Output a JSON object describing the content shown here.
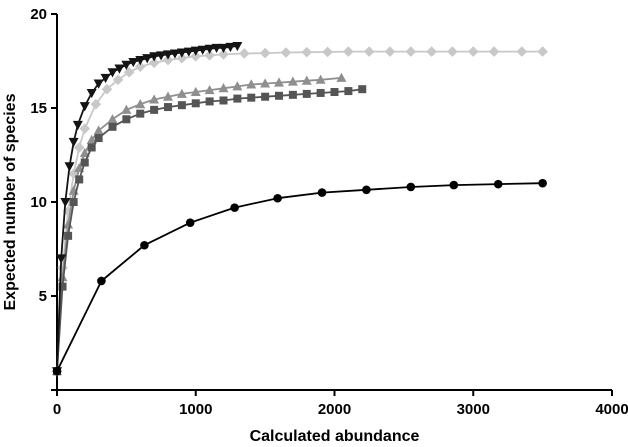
{
  "figure": {
    "background": "#ffffff"
  },
  "chart_data": {
    "type": "line",
    "title": "",
    "xlabel": "Calculated abundance",
    "ylabel": "Expected number of species",
    "xlim": [
      0,
      4000
    ],
    "ylim": [
      0,
      20
    ],
    "x_ticks": [
      0,
      1000,
      2000,
      3000,
      4000
    ],
    "x_tick_labels": [
      "0",
      "1000",
      "2000",
      "3000",
      "4000"
    ],
    "y_ticks": [
      0,
      5,
      10,
      15,
      20
    ],
    "y_tick_labels": [
      "",
      "5",
      "10",
      "15",
      "20"
    ],
    "grid": false,
    "legend": "none",
    "axis_color": "#000000",
    "series": [
      {
        "name": "diamond-series",
        "marker": "diamond",
        "color": "#c8c8c8",
        "asymptote": 18,
        "points": [
          [
            0,
            1
          ],
          [
            40,
            6.5
          ],
          [
            80,
            9.5
          ],
          [
            120,
            11.5
          ],
          [
            160,
            12.9
          ],
          [
            200,
            13.9
          ],
          [
            280,
            15.2
          ],
          [
            360,
            16.0
          ],
          [
            440,
            16.5
          ],
          [
            520,
            16.9
          ],
          [
            600,
            17.2
          ],
          [
            700,
            17.4
          ],
          [
            800,
            17.55
          ],
          [
            900,
            17.65
          ],
          [
            1000,
            17.75
          ],
          [
            1100,
            17.8
          ],
          [
            1200,
            17.85
          ],
          [
            1350,
            17.9
          ],
          [
            1500,
            17.92
          ],
          [
            1650,
            17.95
          ],
          [
            1800,
            17.97
          ],
          [
            1950,
            17.98
          ],
          [
            2100,
            18.0
          ],
          [
            2250,
            18.0
          ],
          [
            2400,
            18.0
          ],
          [
            2550,
            18.0
          ],
          [
            2700,
            18.0
          ],
          [
            2850,
            18.0
          ],
          [
            3000,
            18.0
          ],
          [
            3150,
            18.0
          ],
          [
            3350,
            18.0
          ],
          [
            3500,
            18.0
          ]
        ]
      },
      {
        "name": "triangle-up-series",
        "marker": "triangle-up",
        "color": "#8f8f8f",
        "asymptote": 16.6,
        "points": [
          [
            0,
            1
          ],
          [
            40,
            6.0
          ],
          [
            80,
            8.8
          ],
          [
            120,
            10.6
          ],
          [
            160,
            11.8
          ],
          [
            200,
            12.6
          ],
          [
            250,
            13.3
          ],
          [
            300,
            13.8
          ],
          [
            400,
            14.4
          ],
          [
            500,
            14.9
          ],
          [
            600,
            15.2
          ],
          [
            700,
            15.45
          ],
          [
            800,
            15.6
          ],
          [
            900,
            15.75
          ],
          [
            1000,
            15.85
          ],
          [
            1100,
            15.95
          ],
          [
            1200,
            16.05
          ],
          [
            1300,
            16.15
          ],
          [
            1400,
            16.25
          ],
          [
            1500,
            16.3
          ],
          [
            1600,
            16.35
          ],
          [
            1700,
            16.4
          ],
          [
            1800,
            16.45
          ],
          [
            1900,
            16.5
          ],
          [
            2050,
            16.6
          ]
        ]
      },
      {
        "name": "square-series",
        "marker": "square",
        "color": "#555555",
        "asymptote": 16,
        "points": [
          [
            0,
            1
          ],
          [
            40,
            5.5
          ],
          [
            80,
            8.2
          ],
          [
            120,
            10.0
          ],
          [
            160,
            11.2
          ],
          [
            200,
            12.1
          ],
          [
            250,
            12.9
          ],
          [
            300,
            13.4
          ],
          [
            400,
            14.0
          ],
          [
            500,
            14.4
          ],
          [
            600,
            14.7
          ],
          [
            700,
            14.9
          ],
          [
            800,
            15.05
          ],
          [
            900,
            15.15
          ],
          [
            1000,
            15.25
          ],
          [
            1100,
            15.35
          ],
          [
            1200,
            15.4
          ],
          [
            1300,
            15.5
          ],
          [
            1400,
            15.55
          ],
          [
            1500,
            15.6
          ],
          [
            1600,
            15.65
          ],
          [
            1700,
            15.7
          ],
          [
            1800,
            15.75
          ],
          [
            1900,
            15.8
          ],
          [
            2000,
            15.85
          ],
          [
            2100,
            15.9
          ],
          [
            2200,
            16.0
          ]
        ]
      },
      {
        "name": "triangle-down-series",
        "marker": "triangle-down",
        "color": "#141414",
        "asymptote": 18.3,
        "points": [
          [
            0,
            1
          ],
          [
            30,
            7.0
          ],
          [
            60,
            10.0
          ],
          [
            90,
            11.9
          ],
          [
            120,
            13.2
          ],
          [
            150,
            14.1
          ],
          [
            200,
            15.1
          ],
          [
            250,
            15.8
          ],
          [
            300,
            16.3
          ],
          [
            350,
            16.6
          ],
          [
            400,
            16.9
          ],
          [
            450,
            17.1
          ],
          [
            500,
            17.3
          ],
          [
            550,
            17.45
          ],
          [
            600,
            17.55
          ],
          [
            650,
            17.65
          ],
          [
            700,
            17.75
          ],
          [
            750,
            17.8
          ],
          [
            800,
            17.85
          ],
          [
            850,
            17.9
          ],
          [
            900,
            17.95
          ],
          [
            950,
            18.0
          ],
          [
            1000,
            18.05
          ],
          [
            1050,
            18.1
          ],
          [
            1100,
            18.15
          ],
          [
            1150,
            18.2
          ],
          [
            1200,
            18.2
          ],
          [
            1250,
            18.25
          ],
          [
            1300,
            18.3
          ]
        ]
      },
      {
        "name": "circle-series",
        "marker": "circle",
        "color": "#000000",
        "asymptote": 11,
        "points": [
          [
            0,
            1
          ],
          [
            320,
            5.8
          ],
          [
            630,
            7.7
          ],
          [
            960,
            8.9
          ],
          [
            1280,
            9.7
          ],
          [
            1590,
            10.2
          ],
          [
            1910,
            10.5
          ],
          [
            2230,
            10.65
          ],
          [
            2550,
            10.8
          ],
          [
            2860,
            10.9
          ],
          [
            3180,
            10.95
          ],
          [
            3500,
            11.0
          ]
        ]
      }
    ]
  }
}
